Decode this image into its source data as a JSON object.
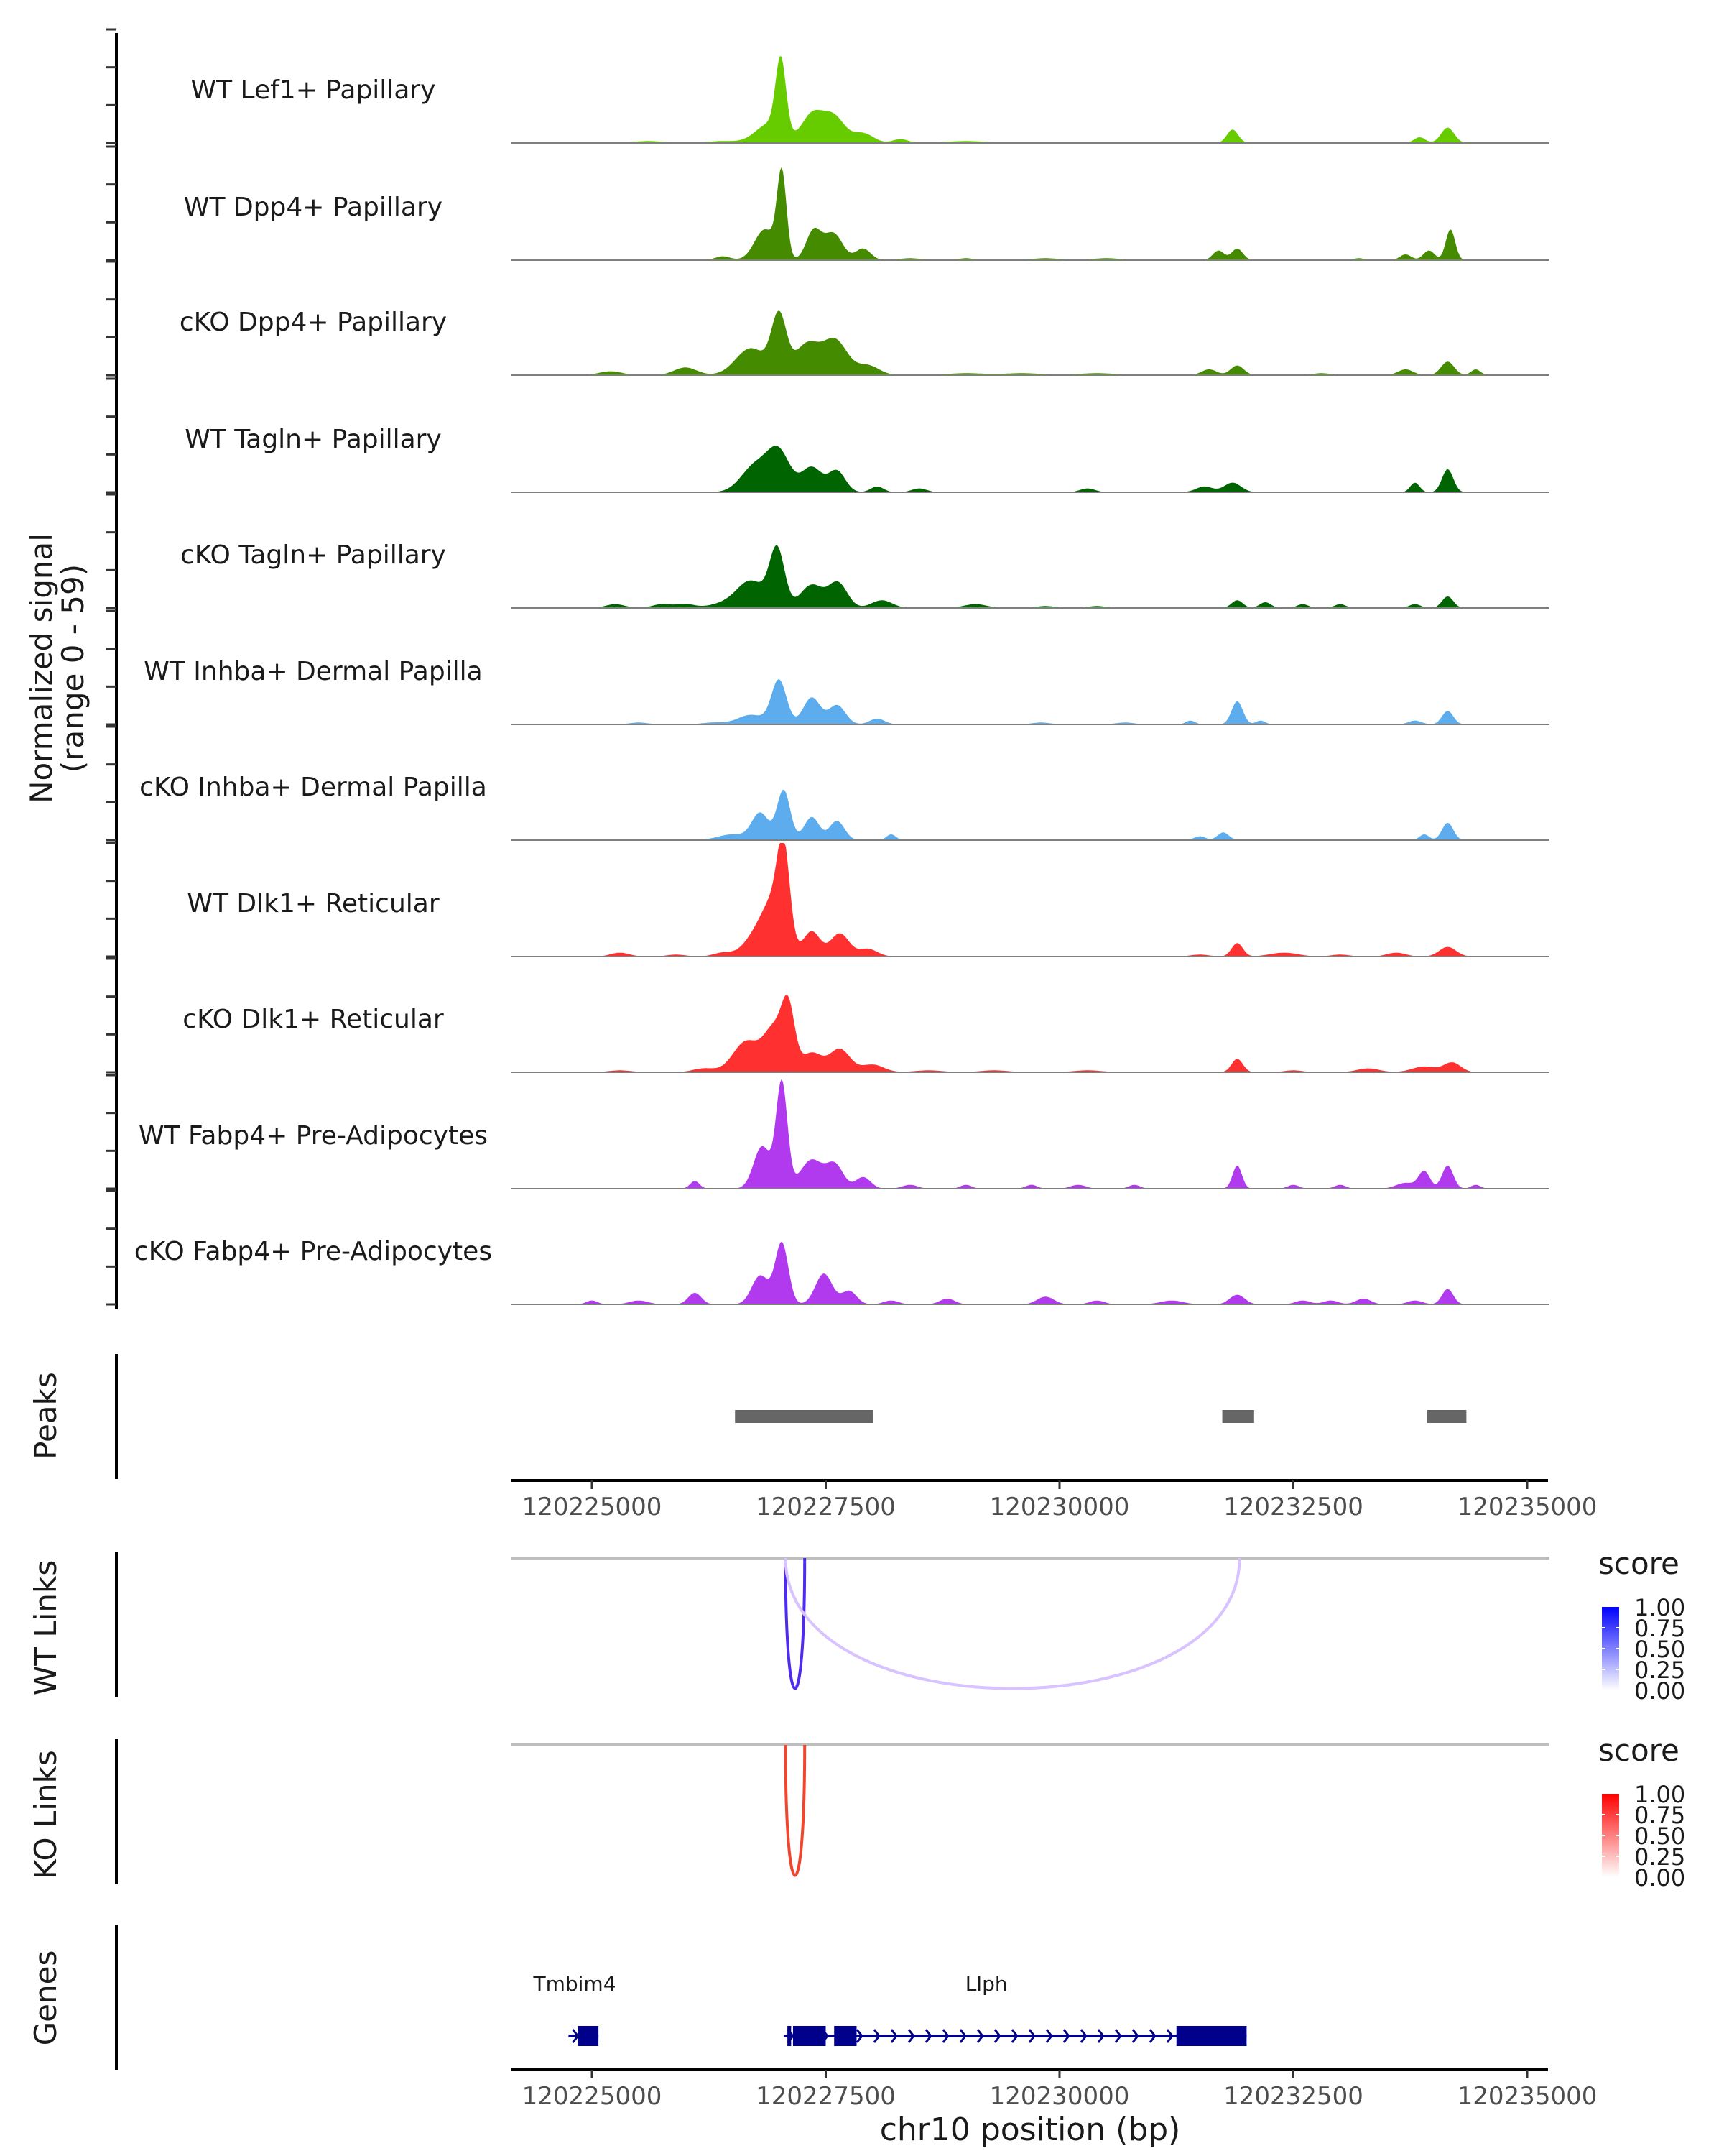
{
  "chart_data": {
    "type": "area",
    "title": "",
    "region": {
      "chromosome": "chr10",
      "start": 120224000,
      "end": 120235100
    },
    "signal": {
      "ylabel_line1": "Normalized signal",
      "ylabel_line2": "(range 0 - 59)",
      "ylim": [
        0,
        59
      ],
      "tracks": [
        {
          "name": "WT Lef1+ Papillary",
          "color": "#66CC00",
          "peaks": [
            [
              120226900,
              10,
              150
            ],
            [
              120227020,
              38,
              55
            ],
            [
              120227350,
              14,
              110
            ],
            [
              120227580,
              14,
              120
            ],
            [
              120227900,
              5,
              110
            ],
            [
              120228300,
              2,
              80
            ],
            [
              120225600,
              1,
              150
            ],
            [
              120226400,
              1,
              150
            ],
            [
              120229000,
              1,
              200
            ],
            [
              120231850,
              7,
              60
            ],
            [
              120233850,
              3,
              60
            ],
            [
              120234150,
              8,
              70
            ]
          ]
        },
        {
          "name": "WT Dpp4+ Papillary",
          "color": "#458B00",
          "peaks": [
            [
              120226850,
              16,
              110
            ],
            [
              120227030,
              44,
              50
            ],
            [
              120227370,
              15,
              80
            ],
            [
              120227580,
              14,
              100
            ],
            [
              120227900,
              6,
              80
            ],
            [
              120226400,
              2,
              80
            ],
            [
              120228400,
              1,
              120
            ],
            [
              120229000,
              1,
              80
            ],
            [
              120231700,
              5,
              60
            ],
            [
              120231900,
              6,
              60
            ],
            [
              120233200,
              1,
              60
            ],
            [
              120233700,
              3,
              60
            ],
            [
              120233950,
              5,
              60
            ],
            [
              120234180,
              16,
              50
            ],
            [
              120229850,
              1,
              150
            ],
            [
              120230500,
              1,
              150
            ]
          ]
        },
        {
          "name": "cKO Dpp4+ Papillary",
          "color": "#458B00",
          "peaks": [
            [
              120226700,
              14,
              160
            ],
            [
              120227000,
              30,
              80
            ],
            [
              120227300,
              16,
              130
            ],
            [
              120227600,
              18,
              130
            ],
            [
              120227950,
              5,
              120
            ],
            [
              120226000,
              4,
              120
            ],
            [
              120225200,
              2,
              120
            ],
            [
              120229000,
              1,
              200
            ],
            [
              120229600,
              1,
              200
            ],
            [
              120230400,
              1,
              200
            ],
            [
              120231900,
              5,
              70
            ],
            [
              120231600,
              3,
              80
            ],
            [
              120233700,
              3,
              80
            ],
            [
              120234150,
              7,
              70
            ],
            [
              120234450,
              3,
              50
            ],
            [
              120232800,
              1,
              100
            ]
          ]
        },
        {
          "name": "WT Tagln+ Papillary",
          "color": "#006400",
          "peaks": [
            [
              120226750,
              14,
              150
            ],
            [
              120227000,
              20,
              120
            ],
            [
              120227350,
              13,
              110
            ],
            [
              120227620,
              11,
              90
            ],
            [
              120228050,
              3,
              70
            ],
            [
              120228500,
              2,
              80
            ],
            [
              120230300,
              2,
              80
            ],
            [
              120231550,
              3,
              90
            ],
            [
              120231850,
              5,
              90
            ],
            [
              120233800,
              5,
              50
            ],
            [
              120234150,
              12,
              60
            ]
          ]
        },
        {
          "name": "cKO Tagln+ Papillary",
          "color": "#006400",
          "peaks": [
            [
              120226700,
              14,
              150
            ],
            [
              120226980,
              30,
              80
            ],
            [
              120227350,
              12,
              120
            ],
            [
              120227630,
              13,
              100
            ],
            [
              120228100,
              4,
              110
            ],
            [
              120225250,
              2,
              100
            ],
            [
              120225750,
              2,
              100
            ],
            [
              120226000,
              2,
              100
            ],
            [
              120226400,
              2,
              150
            ],
            [
              120229100,
              2,
              120
            ],
            [
              120229850,
              1,
              100
            ],
            [
              120230400,
              1,
              100
            ],
            [
              120231900,
              4,
              60
            ],
            [
              120232200,
              3,
              60
            ],
            [
              120232600,
              2,
              60
            ],
            [
              120233000,
              2,
              60
            ],
            [
              120233800,
              2,
              60
            ],
            [
              120234150,
              6,
              60
            ]
          ]
        },
        {
          "name": "WT Inhba+ Dermal Papilla",
          "color": "#5CACEE",
          "peaks": [
            [
              120226700,
              5,
              140
            ],
            [
              120227000,
              23,
              80
            ],
            [
              120227350,
              14,
              90
            ],
            [
              120227620,
              10,
              90
            ],
            [
              120228050,
              3,
              80
            ],
            [
              120225500,
              1,
              100
            ],
            [
              120226300,
              1,
              120
            ],
            [
              120229800,
              1,
              100
            ],
            [
              120230700,
              1,
              100
            ],
            [
              120231400,
              2,
              50
            ],
            [
              120231900,
              12,
              60
            ],
            [
              120232150,
              2,
              50
            ],
            [
              120233800,
              2,
              70
            ],
            [
              120234150,
              7,
              60
            ]
          ]
        },
        {
          "name": "cKO Inhba+ Dermal Papilla",
          "color": "#5CACEE",
          "peaks": [
            [
              120226500,
              3,
              150
            ],
            [
              120226800,
              14,
              90
            ],
            [
              120227050,
              26,
              70
            ],
            [
              120227350,
              12,
              80
            ],
            [
              120227620,
              10,
              80
            ],
            [
              120228200,
              3,
              50
            ],
            [
              120231500,
              2,
              60
            ],
            [
              120231750,
              4,
              60
            ],
            [
              120233900,
              3,
              50
            ],
            [
              120234150,
              9,
              60
            ]
          ]
        },
        {
          "name": "WT Dlk1+ Reticular",
          "color": "#FF3030",
          "peaks": [
            [
              120226750,
              10,
              130
            ],
            [
              120226950,
              26,
              120
            ],
            [
              120227050,
              44,
              65
            ],
            [
              120227350,
              13,
              90
            ],
            [
              120227650,
              12,
              100
            ],
            [
              120227950,
              4,
              100
            ],
            [
              120225300,
              2,
              100
            ],
            [
              120225900,
              1,
              100
            ],
            [
              120226400,
              2,
              100
            ],
            [
              120231500,
              1,
              100
            ],
            [
              120231900,
              7,
              60
            ],
            [
              120232400,
              2,
              150
            ],
            [
              120233000,
              1,
              100
            ],
            [
              120233600,
              2,
              100
            ],
            [
              120234150,
              5,
              90
            ]
          ]
        },
        {
          "name": "cKO Dlk1+ Reticular",
          "color": "#FF3030",
          "peaks": [
            [
              120226650,
              16,
              140
            ],
            [
              120226950,
              22,
              110
            ],
            [
              120227100,
              30,
              70
            ],
            [
              120227350,
              10,
              110
            ],
            [
              120227650,
              12,
              110
            ],
            [
              120228000,
              4,
              120
            ],
            [
              120225300,
              1,
              120
            ],
            [
              120226200,
              2,
              120
            ],
            [
              120228600,
              1,
              150
            ],
            [
              120229300,
              1,
              150
            ],
            [
              120230300,
              1,
              150
            ],
            [
              120231900,
              7,
              60
            ],
            [
              120232500,
              1,
              100
            ],
            [
              120233300,
              2,
              120
            ],
            [
              120233900,
              3,
              130
            ],
            [
              120234200,
              5,
              90
            ]
          ]
        },
        {
          "name": "WT Fabp4+ Pre-Adipocytes",
          "color": "#B23AEE",
          "peaks": [
            [
              120226820,
              22,
              90
            ],
            [
              120227030,
              55,
              60
            ],
            [
              120227350,
              15,
              120
            ],
            [
              120227600,
              12,
              90
            ],
            [
              120227900,
              6,
              80
            ],
            [
              120226100,
              4,
              50
            ],
            [
              120228400,
              2,
              80
            ],
            [
              120229000,
              2,
              60
            ],
            [
              120229700,
              2,
              60
            ],
            [
              120230200,
              2,
              80
            ],
            [
              120230800,
              2,
              60
            ],
            [
              120231900,
              12,
              50
            ],
            [
              120232500,
              2,
              60
            ],
            [
              120233000,
              2,
              60
            ],
            [
              120233700,
              3,
              100
            ],
            [
              120233900,
              9,
              60
            ],
            [
              120234150,
              12,
              60
            ],
            [
              120234450,
              2,
              50
            ]
          ]
        },
        {
          "name": "cKO Fabp4+ Pre-Adipocytes",
          "color": "#B23AEE",
          "peaks": [
            [
              120226800,
              15,
              90
            ],
            [
              120227030,
              32,
              70
            ],
            [
              120227480,
              16,
              90
            ],
            [
              120227750,
              7,
              80
            ],
            [
              120225000,
              2,
              60
            ],
            [
              120225500,
              2,
              100
            ],
            [
              120226100,
              6,
              70
            ],
            [
              120228200,
              2,
              80
            ],
            [
              120228800,
              3,
              80
            ],
            [
              120229850,
              4,
              90
            ],
            [
              120230400,
              2,
              80
            ],
            [
              120231200,
              2,
              120
            ],
            [
              120231900,
              5,
              80
            ],
            [
              120232600,
              2,
              80
            ],
            [
              120232900,
              2,
              80
            ],
            [
              120233250,
              3,
              80
            ],
            [
              120233800,
              2,
              80
            ],
            [
              120234150,
              8,
              60
            ]
          ]
        }
      ]
    },
    "peaks_track": {
      "label": "Peaks",
      "color": "#666666",
      "regions": [
        [
          120226530,
          120228010
        ],
        [
          120231740,
          120232080
        ],
        [
          120233930,
          120234350
        ]
      ]
    },
    "links_tracks": [
      {
        "label": "WT Links",
        "color_high": "#0000FF",
        "links": [
          {
            "start": 120227070,
            "end": 120227275,
            "score": 0.85
          },
          {
            "start": 120227070,
            "end": 120231925,
            "score": 0.25
          }
        ]
      },
      {
        "label": "KO Links",
        "color_high": "#FF0000",
        "links": [
          {
            "start": 120227070,
            "end": 120227275,
            "score": 0.85
          }
        ]
      }
    ],
    "legend": {
      "title": "score",
      "ticks": [
        "1.00",
        "0.75",
        "0.50",
        "0.25",
        "0.00"
      ],
      "placement": "right"
    },
    "genes_track": {
      "label": "Genes",
      "color": "#00008B",
      "strand": "+",
      "genes": [
        {
          "name": "Tmbim4",
          "start": 120224750,
          "end": 120225070,
          "exons": [
            [
              120224850,
              120225070
            ]
          ]
        },
        {
          "name": "Llph",
          "start": 120227050,
          "end": 120232000,
          "exons": [
            [
              120227090,
              120227130
            ],
            [
              120227150,
              120227500
            ],
            [
              120227590,
              120227830
            ],
            [
              120231250,
              120232000
            ]
          ]
        }
      ]
    },
    "x_axis": {
      "ticks": [
        120225000,
        120227500,
        120230000,
        120232500,
        120235000
      ],
      "tick_labels": [
        "120225000",
        "120227500",
        "120230000",
        "120232500",
        "120235000"
      ],
      "xlabel": "chr10 position (bp)"
    }
  }
}
